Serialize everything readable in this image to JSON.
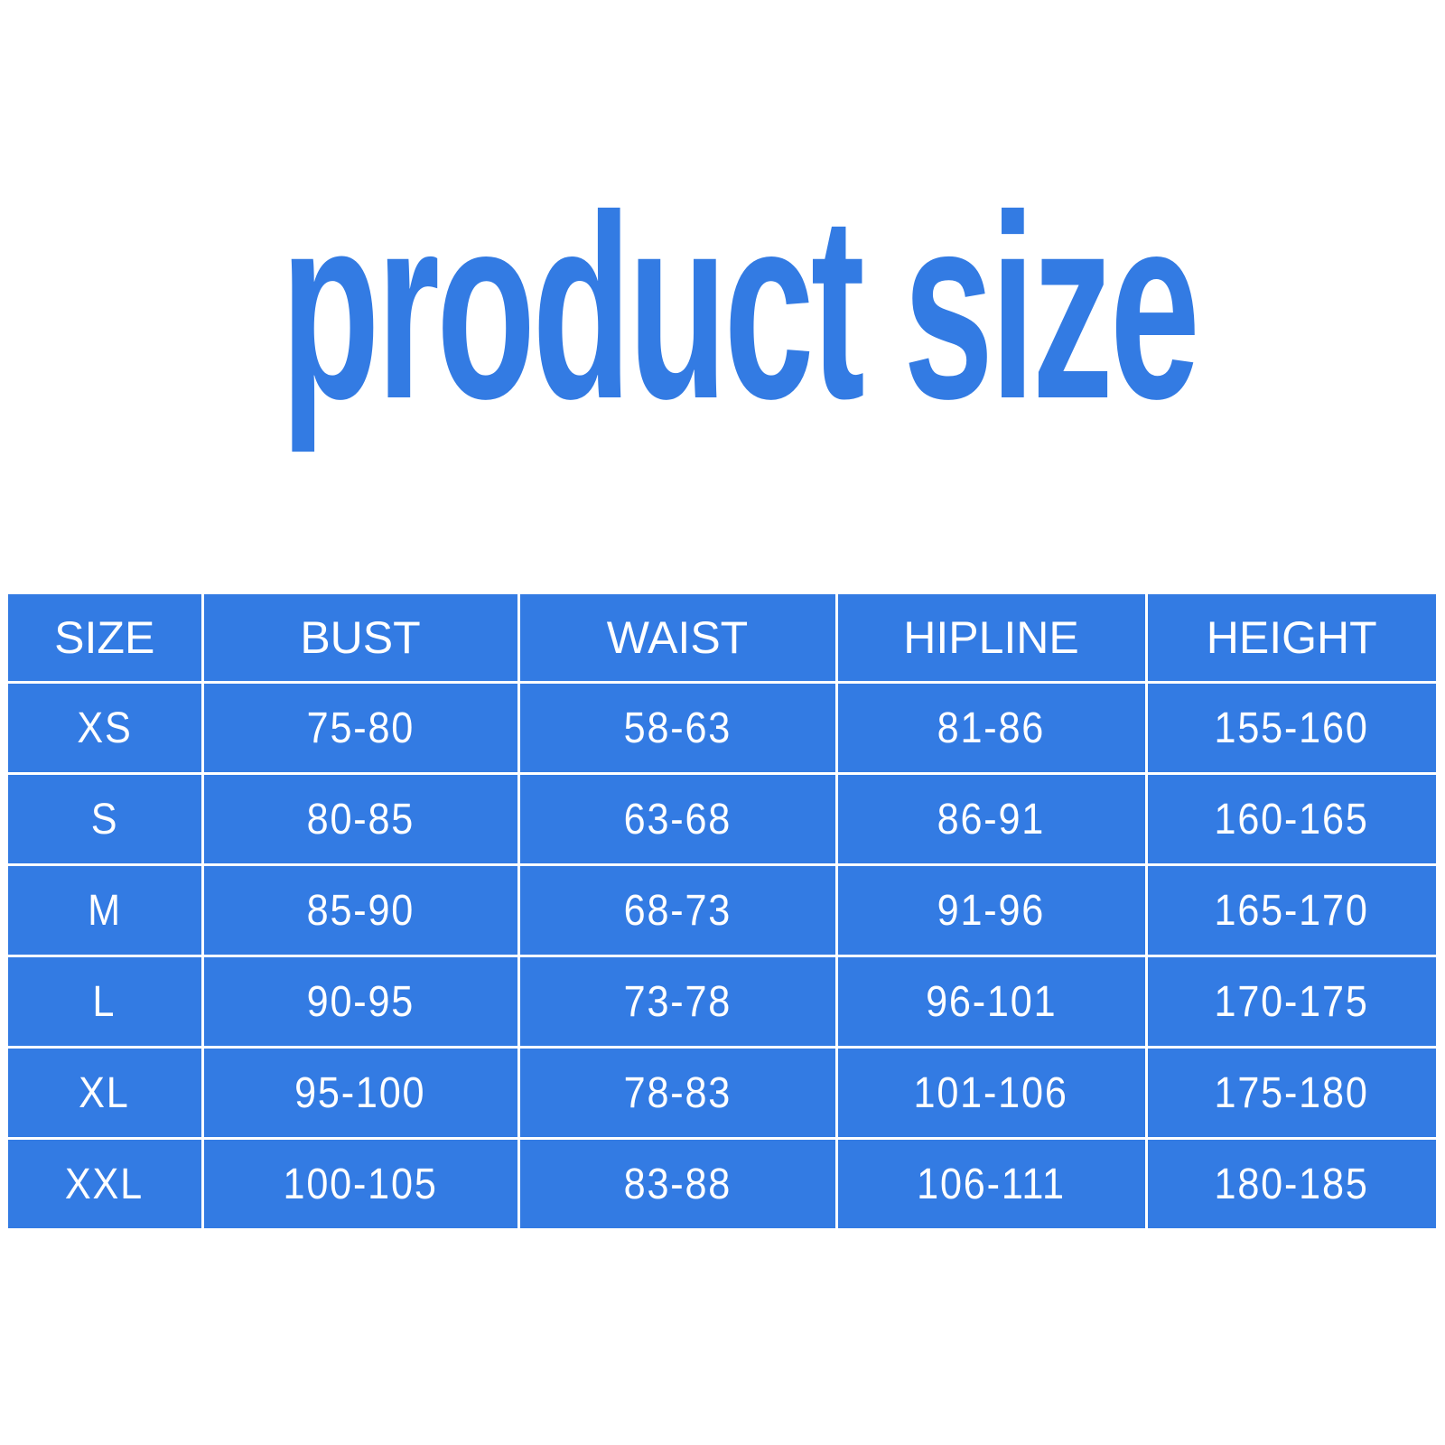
{
  "title": "product size",
  "colors": {
    "accent": "#337be3",
    "text_on_accent": "#ffffff"
  },
  "table": {
    "headers": [
      "SIZE",
      "BUST",
      "WAIST",
      "HIPLINE",
      "HEIGHT"
    ],
    "rows": [
      [
        "XS",
        "75-80",
        "58-63",
        "81-86",
        "155-160"
      ],
      [
        "S",
        "80-85",
        "63-68",
        "86-91",
        "160-165"
      ],
      [
        "M",
        "85-90",
        "68-73",
        "91-96",
        "165-170"
      ],
      [
        "L",
        "90-95",
        "73-78",
        "96-101",
        "170-175"
      ],
      [
        "XL",
        "95-100",
        "78-83",
        "101-106",
        "175-180"
      ],
      [
        "XXL",
        "100-105",
        "83-88",
        "106-111",
        "180-185"
      ]
    ]
  }
}
